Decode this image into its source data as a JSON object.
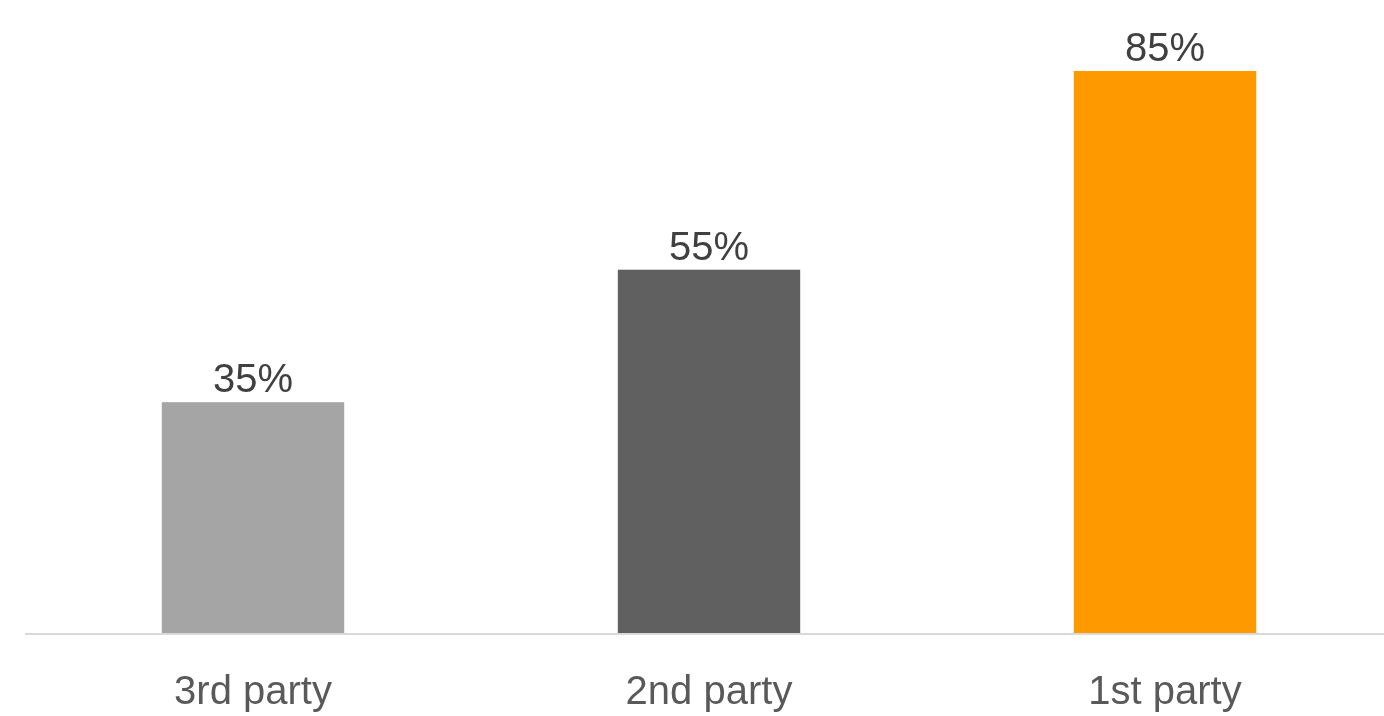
{
  "chart_data": {
    "type": "bar",
    "categories": [
      "3rd party",
      "2nd party",
      "1st party"
    ],
    "values": [
      35,
      55,
      85
    ],
    "colors": [
      "#a5a5a5",
      "#606060",
      "#ff9900"
    ],
    "data_labels": true,
    "value_labels": [
      "35%",
      "55%",
      "85%"
    ]
  }
}
